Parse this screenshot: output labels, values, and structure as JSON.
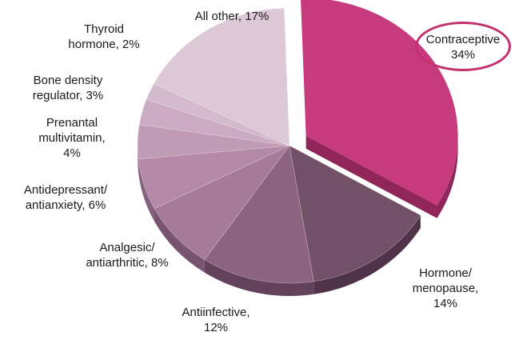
{
  "chart_data": {
    "type": "pie",
    "title": "",
    "slices": [
      {
        "label": "Contraceptive",
        "value": 34,
        "value_text": "34%",
        "color": "#c83a7e",
        "side": "#8f2558",
        "exploded": true,
        "highlighted": true
      },
      {
        "label": "Hormone/ menopause,",
        "value": 14,
        "value_text": "14%",
        "color": "#725068",
        "side": "#4f3449"
      },
      {
        "label": "Antiinfective,",
        "value": 12,
        "value_text": "12%",
        "color": "#8c6381",
        "side": "#62425a"
      },
      {
        "label": "Analgesic/ antiarthritic,",
        "value": 8,
        "value_text": "8%",
        "color": "#a67a99",
        "side": "#785470"
      },
      {
        "label": "Antidepressant/ antianxiety,",
        "value": 6,
        "value_text": "6%",
        "color": "#b48aa8",
        "side": "#86607d"
      },
      {
        "label": "Prenantal multivitamin,",
        "value": 4,
        "value_text": "4%",
        "color": "#c09bb4",
        "side": "#927088"
      },
      {
        "label": "Bone density regulator,",
        "value": 3,
        "value_text": "3%",
        "color": "#cbabc1",
        "side": "#9d7f93"
      },
      {
        "label": "Thyroid hormone,",
        "value": 2,
        "value_text": "2%",
        "color": "#d4bacc",
        "side": "#a78ea0"
      },
      {
        "label": "All other,",
        "value": 17,
        "value_text": "17%",
        "color": "#dcc8d6",
        "side": "#ae9aa9"
      }
    ],
    "legend": "none"
  },
  "labels": {
    "contraceptive": [
      "Contraceptive",
      "34%"
    ],
    "hormone": [
      "Hormone/",
      "menopause,",
      "14%"
    ],
    "antiinfective": [
      "Antiinfective,",
      "12%"
    ],
    "analgesic": [
      "Analgesic/",
      "antiarthritic, 8%"
    ],
    "antidepressant": [
      "Antidepressant/",
      "antianxiety, 6%"
    ],
    "prenatal": [
      "Prenantal",
      "multivitamin,",
      "4%"
    ],
    "bone": [
      "Bone density",
      "regulator, 3%"
    ],
    "thyroid": [
      "Thyroid",
      "hormone, 2%"
    ],
    "allother": [
      "All other, 17%"
    ]
  }
}
